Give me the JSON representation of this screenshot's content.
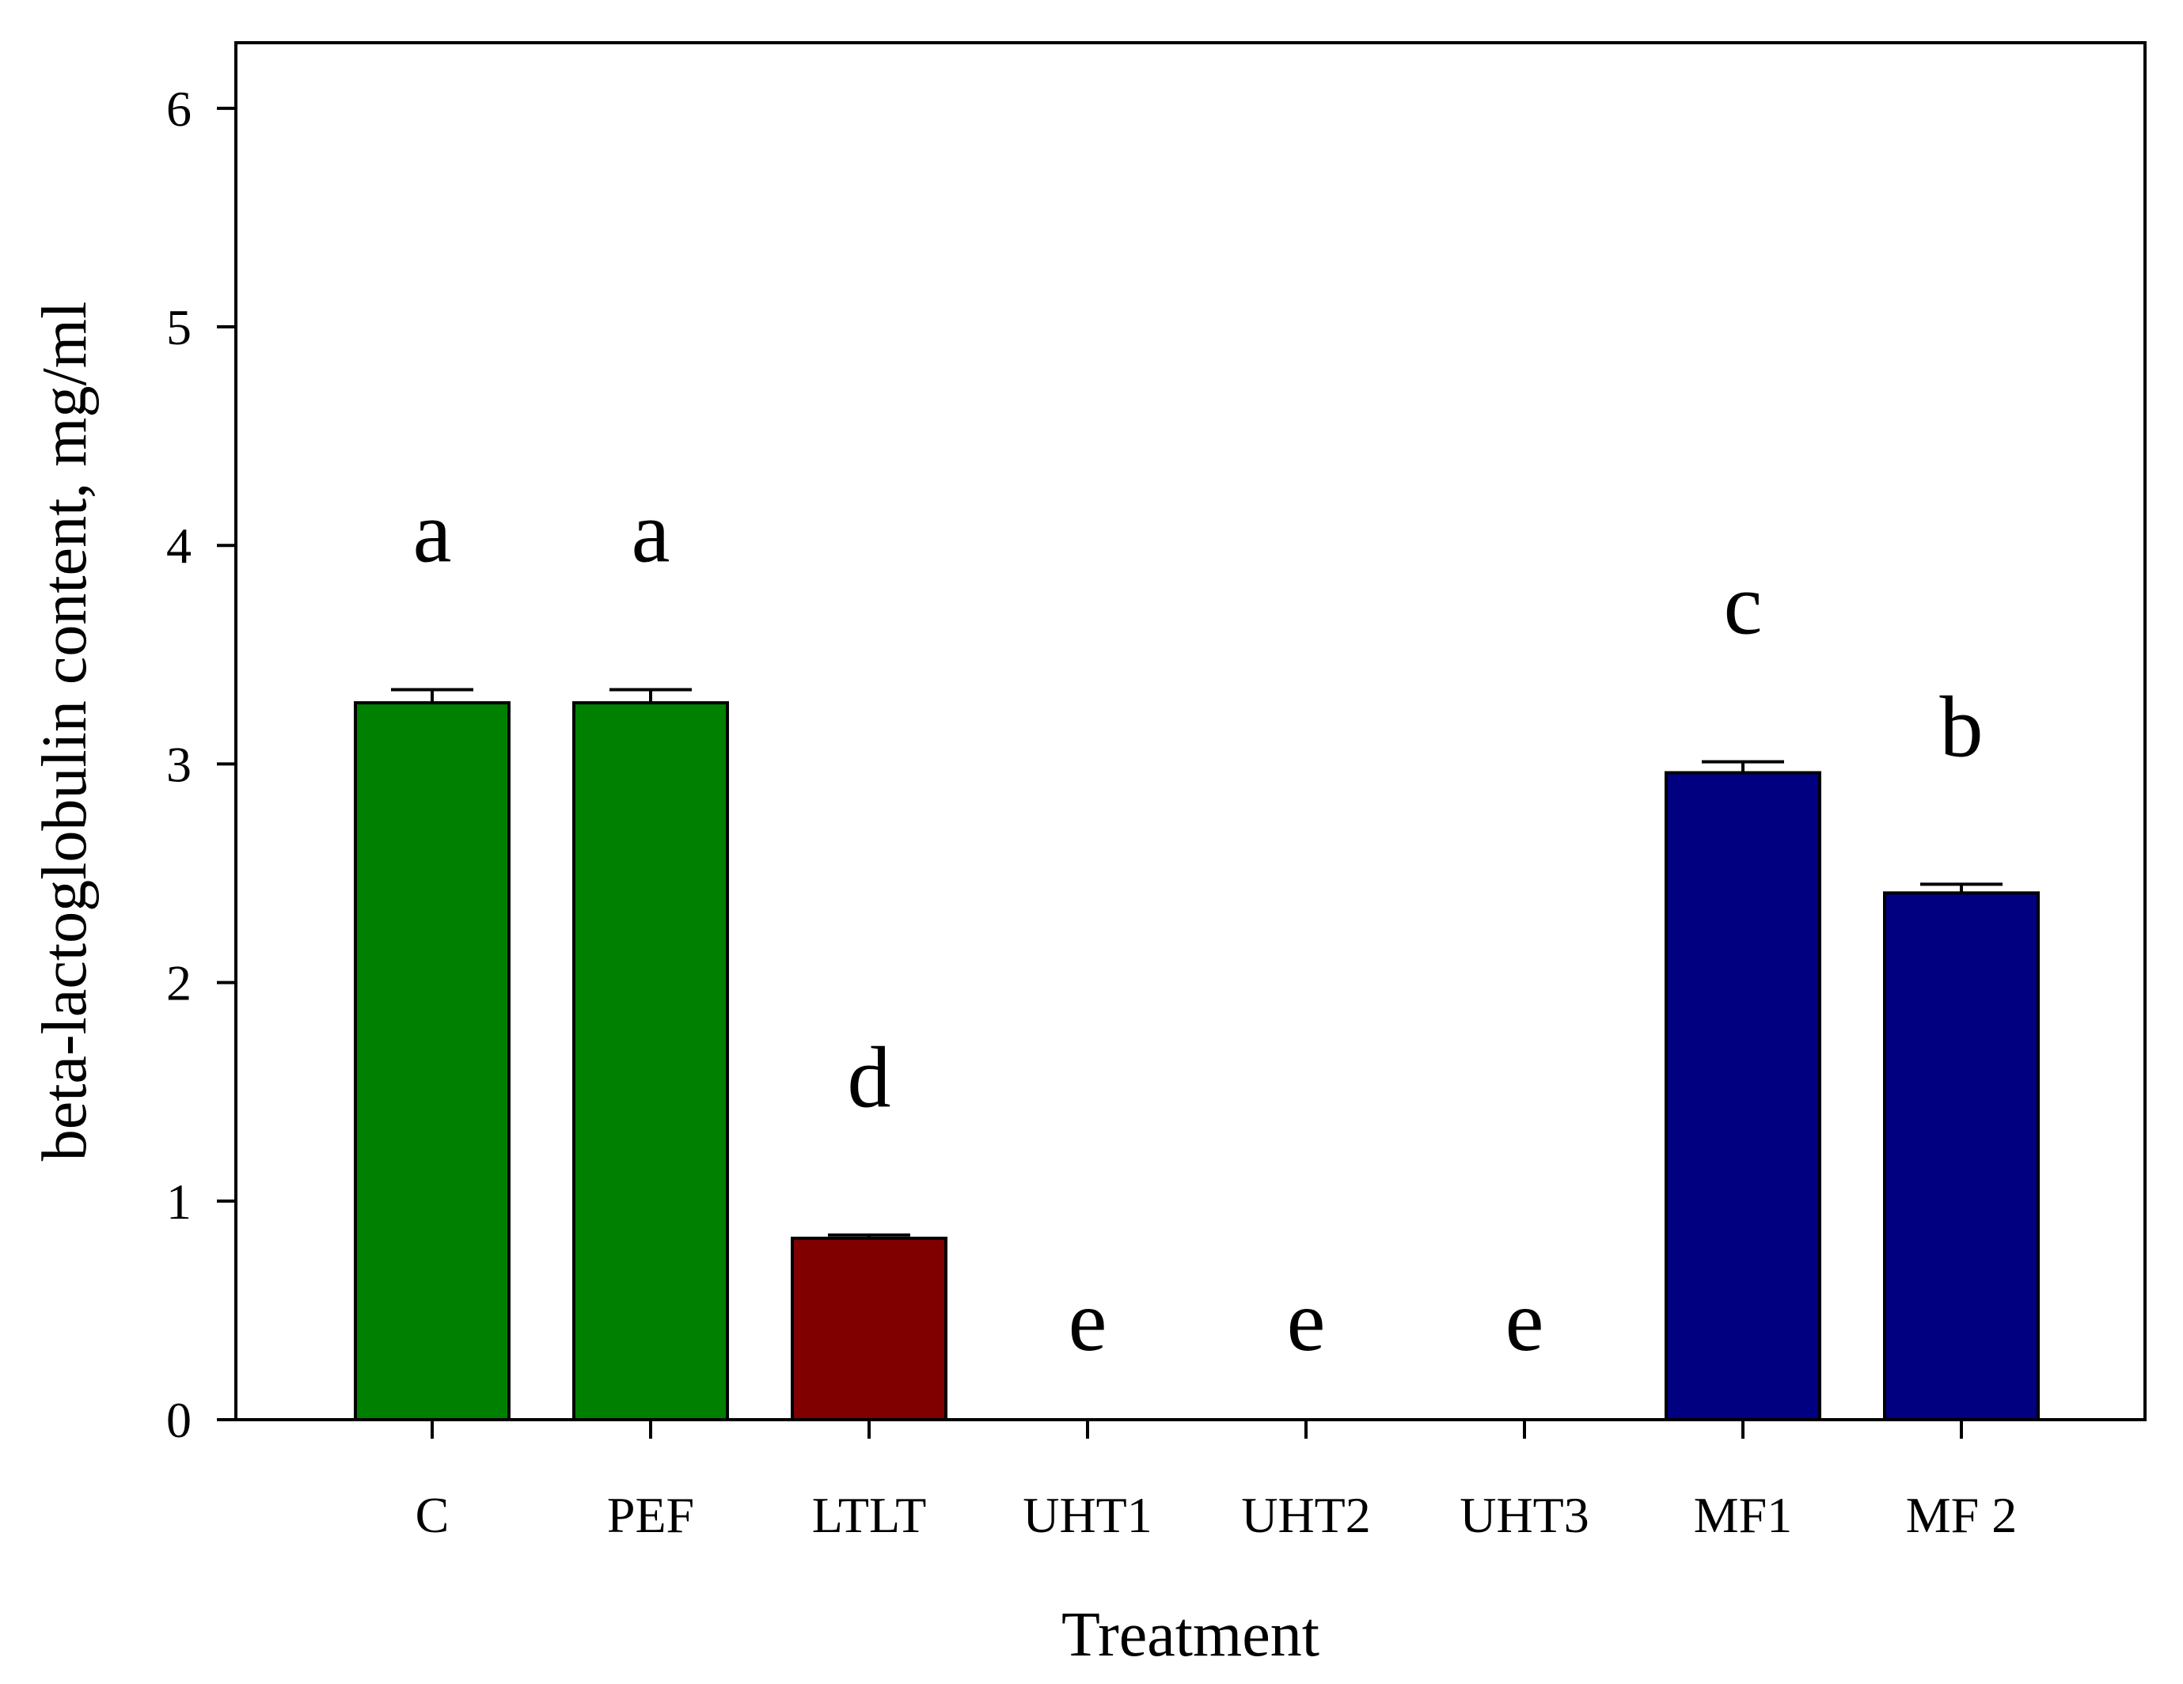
{
  "chart_data": {
    "type": "bar",
    "title": "",
    "xlabel": "Treatment",
    "ylabel": "beta-lactoglobulin content, mg/ml",
    "ylim": [
      0,
      6.3
    ],
    "yticks": [
      0,
      1,
      2,
      3,
      4,
      5,
      6
    ],
    "grid": false,
    "legend": "none",
    "categories": [
      "C",
      "PEF",
      "LTLT",
      "UHT1",
      "UHT2",
      "UHT3",
      "MF1",
      "MF 2"
    ],
    "values": [
      3.28,
      3.28,
      0.83,
      0,
      0,
      0,
      2.96,
      2.41
    ],
    "errors": [
      0.06,
      0.06,
      0.015,
      0,
      0,
      0,
      0.05,
      0.04
    ],
    "significance_letters": [
      "a",
      "a",
      "d",
      "e",
      "e",
      "e",
      "c",
      "b"
    ],
    "bar_colors": [
      "#008000",
      "#008000",
      "#800000",
      "#800000",
      "#800000",
      "#800000",
      "#000080",
      "#000080"
    ]
  }
}
